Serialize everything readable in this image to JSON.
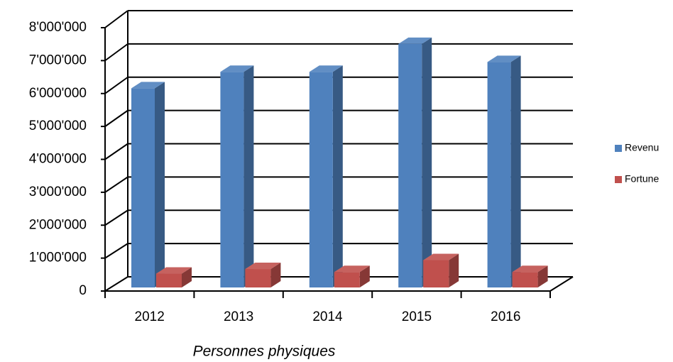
{
  "chart_data": {
    "type": "bar",
    "x_label": "Personnes physiques",
    "categories": [
      "2012",
      "2013",
      "2014",
      "2015",
      "2016"
    ],
    "series": [
      {
        "name": "Revenu",
        "color": "#4f81bd",
        "values": [
          6050000,
          6550000,
          6550000,
          7400000,
          6850000
        ]
      },
      {
        "name": "Fortune",
        "color": "#c0504d",
        "values": [
          420000,
          560000,
          470000,
          830000,
          470000
        ]
      }
    ],
    "ylim": [
      0,
      8000000
    ],
    "yticks": [
      0,
      {
        "value": 1000000,
        "label": "1'000'000"
      },
      {
        "value": 2000000,
        "label": "2'000'000"
      },
      {
        "value": 3000000,
        "label": "3'000'000"
      },
      {
        "value": 4000000,
        "label": "4'000'000"
      },
      {
        "value": 5000000,
        "label": "5'000'000"
      },
      {
        "value": 6000000,
        "label": "6'000'000"
      },
      {
        "value": 7000000,
        "label": "7'000'000"
      },
      {
        "value": 8000000,
        "label": "8'000'000"
      }
    ],
    "grid": true,
    "legend": "right"
  }
}
